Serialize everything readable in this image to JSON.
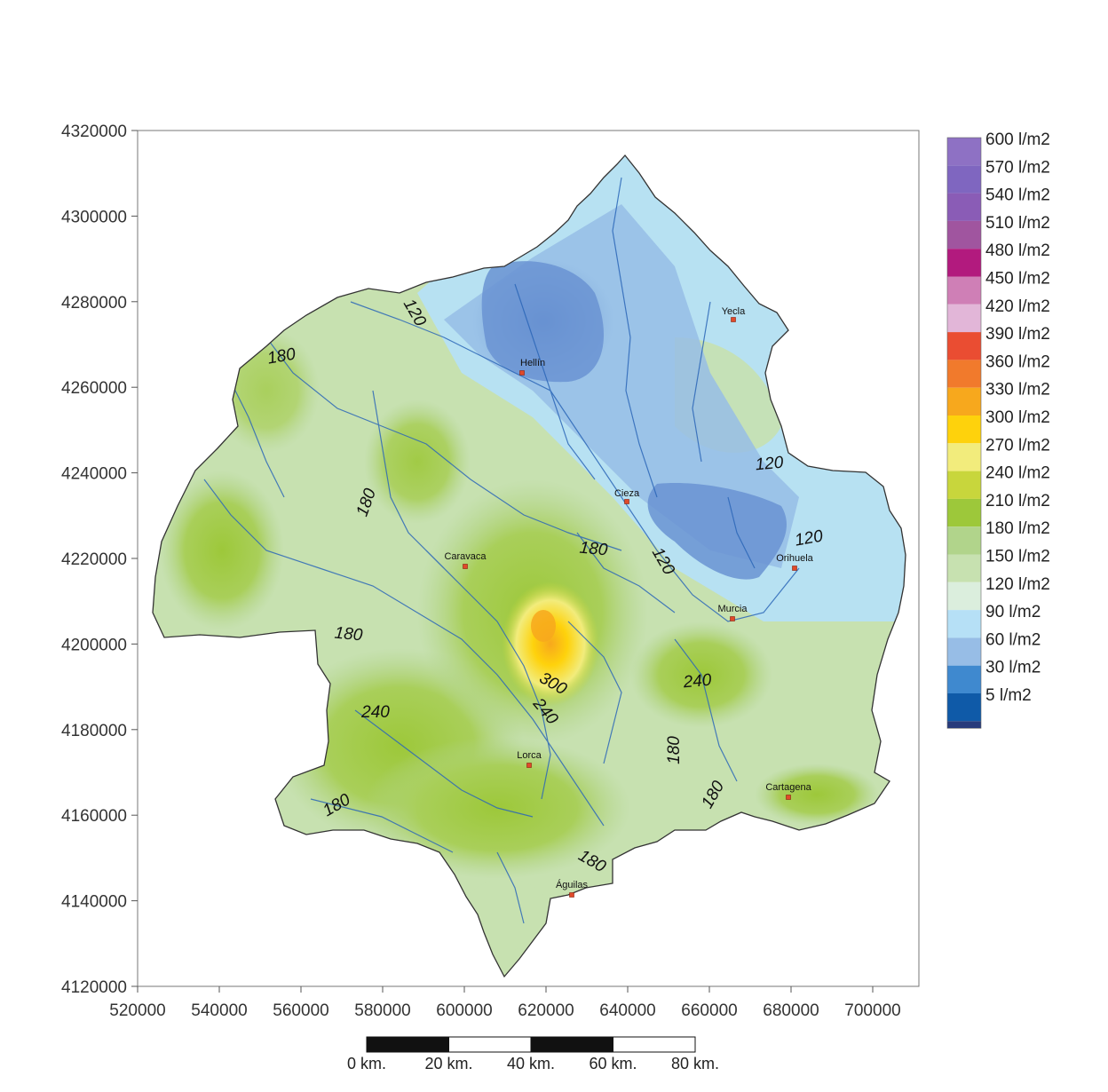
{
  "map": {
    "x_ticks": [
      "520000",
      "540000",
      "560000",
      "580000",
      "600000",
      "620000",
      "640000",
      "660000",
      "680000",
      "700000"
    ],
    "y_ticks": [
      "4320000",
      "4300000",
      "4280000",
      "4260000",
      "4240000",
      "4220000",
      "4200000",
      "4180000",
      "4160000",
      "4140000",
      "4120000"
    ],
    "cities": [
      {
        "name": "Hellín"
      },
      {
        "name": "Yecla"
      },
      {
        "name": "Cieza"
      },
      {
        "name": "Caravaca"
      },
      {
        "name": "Orihuela"
      },
      {
        "name": "Murcia"
      },
      {
        "name": "Lorca"
      },
      {
        "name": "Cartagena"
      },
      {
        "name": "Águilas"
      }
    ],
    "isolines": [
      "120",
      "180",
      "180",
      "120",
      "120",
      "120",
      "180",
      "180",
      "300",
      "240",
      "240",
      "240",
      "180",
      "180",
      "180",
      "180"
    ]
  },
  "legend": {
    "items": [
      {
        "label": "600 l/m2",
        "color": "#8e71c4"
      },
      {
        "label": "570 l/m2",
        "color": "#7f66c0"
      },
      {
        "label": "540 l/m2",
        "color": "#8a5cb6"
      },
      {
        "label": "510 l/m2",
        "color": "#a0559f"
      },
      {
        "label": "480 l/m2",
        "color": "#b21a7e"
      },
      {
        "label": "450 l/m2",
        "color": "#cf7fb6"
      },
      {
        "label": "420 l/m2",
        "color": "#e2b6d8"
      },
      {
        "label": "390 l/m2",
        "color": "#ea4d32"
      },
      {
        "label": "360 l/m2",
        "color": "#f17a2c"
      },
      {
        "label": "330 l/m2",
        "color": "#f7a81d"
      },
      {
        "label": "300 l/m2",
        "color": "#fed20c"
      },
      {
        "label": "270 l/m2",
        "color": "#f2ec7c"
      },
      {
        "label": "240 l/m2",
        "color": "#c8d63c"
      },
      {
        "label": "210 l/m2",
        "color": "#9dc83a"
      },
      {
        "label": "180 l/m2",
        "color": "#b1d48b"
      },
      {
        "label": "150 l/m2",
        "color": "#c7e1b0"
      },
      {
        "label": "120 l/m2",
        "color": "#dbeedd"
      },
      {
        "label": "90 l/m2",
        "color": "#b6e0f6"
      },
      {
        "label": "60 l/m2",
        "color": "#97bde6"
      },
      {
        "label": "30 l/m2",
        "color": "#3f89cf"
      },
      {
        "label": "5 l/m2",
        "color": "#0f5aa8"
      }
    ],
    "bottom_color": "#283b7b"
  },
  "scale_bar": {
    "labels": [
      "0 km.",
      "20 km.",
      "40 km.",
      "60 km.",
      "80 km."
    ]
  }
}
